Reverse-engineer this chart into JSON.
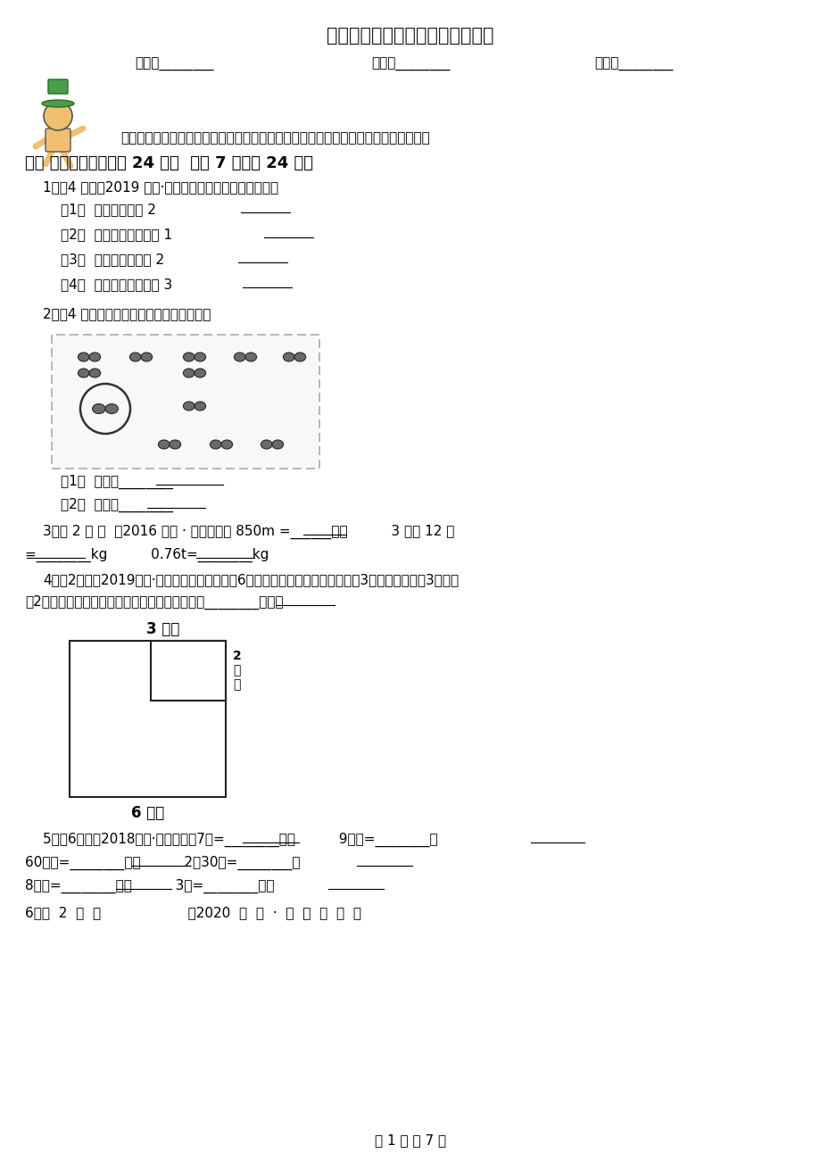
{
  "title": "杭州市三年级上学期数学期末试卷",
  "name_label": "姓名：________",
  "class_label": "班级：________",
  "score_label": "成绩：________",
  "intro": "小朋友，带上你一段时间的学习成果，一起来做个自我检测吧，相信你一定是最棒的！",
  "section1_title": "一、 请你填一填．（共 24 分）  （共 7 题；共 24 分）",
  "q1_header": "1．（4 分）（2019 三上·红山期末）填上合适的单位名称",
  "q1_items": [
    "（1）  遥控器大约长 2______",
    "（2）  眨一下眼睛大约是 1______",
    "（3）  一元硬币大约厚 2______",
    "（4）  河马的体重大约是 3______"
  ],
  "q2_header": "2．（4 分）用分数和小数表示圈出的部分．",
  "q2_sub": [
    "（1）  分数：________",
    "（2）  小数：________"
  ],
  "q3_line1": "3．（ 2 分 ）  （2016 四下 · 甘肃月考） 850m =______千米          3 千克 12 克",
  "q3_line2": "=________kg          0.76t=________kg",
  "q4_line1": "4．（2分）（2019三上·兴化期中）有一块边长6分米的正方形玻璃，在它的一角3分米划去一块长3分米、",
  "q4_line2": "宽2分米的长方形玻璃，（如图）剩下部分的周长________厘米。",
  "q4_label_top": "3 分米",
  "q4_label_right": "2\n分\n米",
  "q4_label_bottom": "6 分米",
  "q5_line1": "5．（6分）（2018三上·东莞期中）7吨=________千克          9千米=________米",
  "q5_line2": "60分米=________厘米          2分30秒=________秒",
  "q5_line3": "8厘米=________毫米          3米=________分米",
  "q6_line": "6．（  2  分  ）                    （2020  三  上  ·  镇  原  期  末  ）",
  "footer": "第 1 页 共 7 页",
  "bg_color": "#ffffff"
}
